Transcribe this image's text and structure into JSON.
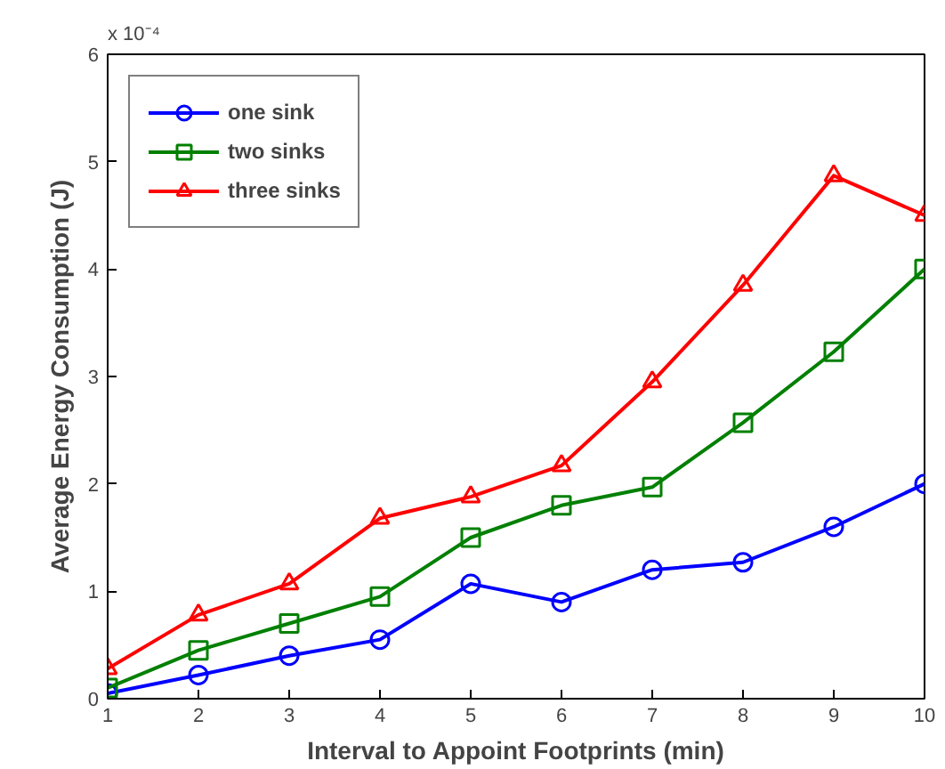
{
  "chart_data": {
    "type": "line",
    "xlabel": "Interval to Appoint Footprints (min)",
    "ylabel": "Average Energy Consumption (J)",
    "annotations": [
      "x 10⁻⁴"
    ],
    "x": [
      1,
      2,
      3,
      4,
      5,
      6,
      7,
      8,
      9,
      10
    ],
    "xlim": [
      1,
      10
    ],
    "xticks": [
      1,
      2,
      3,
      4,
      5,
      6,
      7,
      8,
      9,
      10
    ],
    "ylim": [
      0,
      6
    ],
    "yticks": [
      0,
      1,
      2,
      3,
      4,
      5,
      6
    ],
    "grid": false,
    "legend": "top left",
    "line_style": "solid",
    "series": [
      {
        "name": "one sink",
        "color": "#0000ff",
        "marker": "circle",
        "values": [
          0.05,
          0.22,
          0.4,
          0.55,
          1.07,
          0.9,
          1.2,
          1.27,
          1.6,
          2.0
        ]
      },
      {
        "name": "two sinks",
        "color": "#008000",
        "marker": "square",
        "values": [
          0.1,
          0.45,
          0.7,
          0.95,
          1.5,
          1.8,
          1.97,
          2.57,
          3.23,
          4.0
        ]
      },
      {
        "name": "three sinks",
        "color": "#ff0000",
        "marker": "triangle",
        "values": [
          0.28,
          0.78,
          1.07,
          1.68,
          1.88,
          2.17,
          2.95,
          3.85,
          4.87,
          4.5
        ]
      }
    ]
  }
}
